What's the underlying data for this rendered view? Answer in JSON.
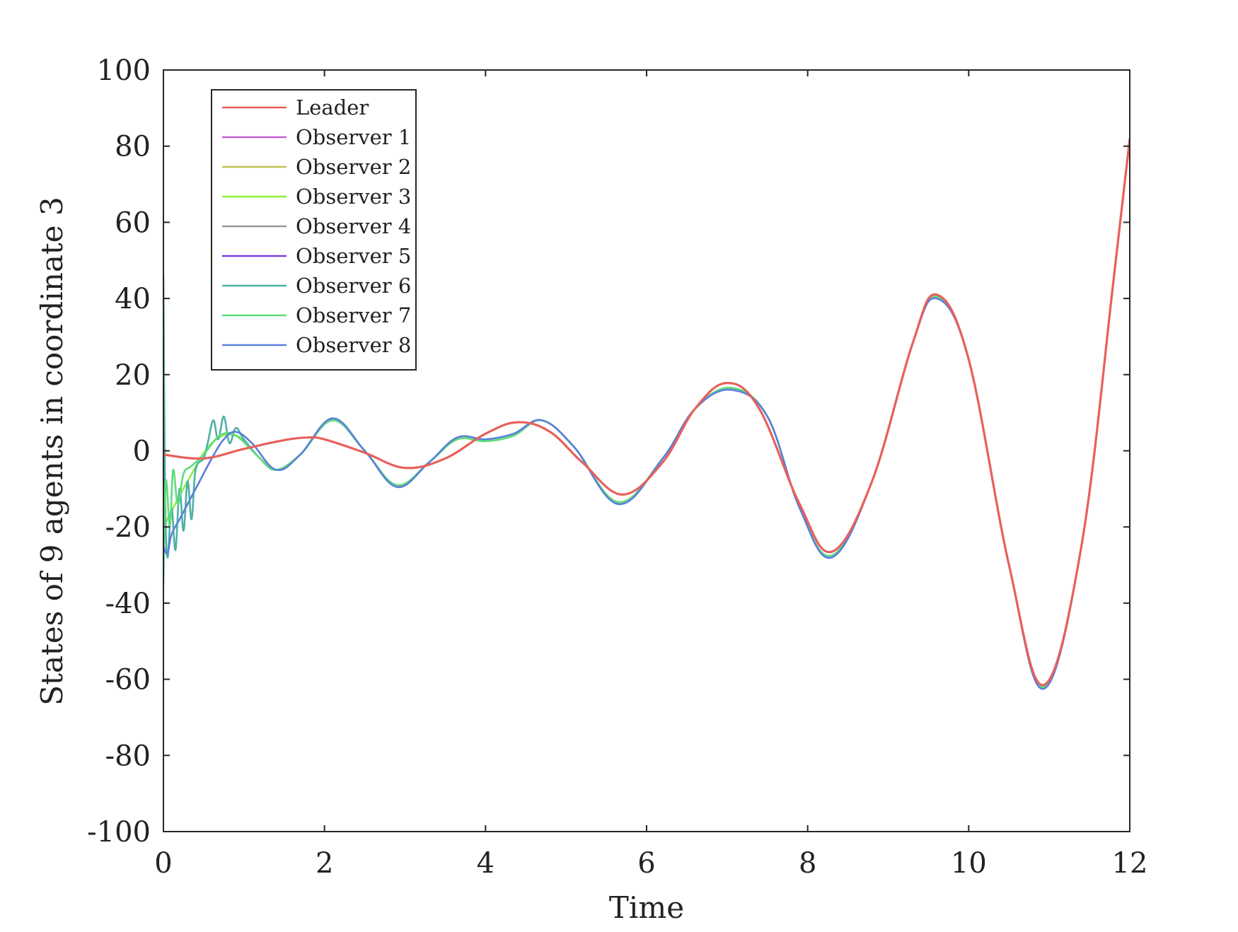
{
  "chart_data": {
    "type": "line",
    "title": "",
    "xlabel": "Time",
    "ylabel": "States of 9 agents in coordinate 3",
    "xlim": [
      0,
      12
    ],
    "ylim": [
      -100,
      100
    ],
    "xticks": [
      0,
      2,
      4,
      6,
      8,
      10,
      12
    ],
    "yticks": [
      -100,
      -80,
      -60,
      -40,
      -20,
      0,
      20,
      40,
      60,
      80,
      100
    ],
    "xtick_labels": [
      "0",
      "2",
      "4",
      "6",
      "8",
      "10",
      "12"
    ],
    "ytick_labels": [
      "-100",
      "-80",
      "-60",
      "-40",
      "-20",
      "0",
      "20",
      "40",
      "60",
      "80",
      "100"
    ],
    "grid": false,
    "legend_position": "top-left",
    "series": [
      {
        "name": "Leader",
        "color": "#e8605a",
        "points": [
          [
            0,
            -1
          ],
          [
            0.5,
            -2
          ],
          [
            1.0,
            0.5
          ],
          [
            1.5,
            2.8
          ],
          [
            1.8,
            3.5
          ],
          [
            2.0,
            3.0
          ],
          [
            2.5,
            -0.5
          ],
          [
            3.0,
            -4.5
          ],
          [
            3.5,
            -2
          ],
          [
            4.0,
            4.5
          ],
          [
            4.4,
            7.5
          ],
          [
            4.8,
            5
          ],
          [
            5.2,
            -3
          ],
          [
            5.7,
            -11.5
          ],
          [
            6.2,
            -3
          ],
          [
            6.6,
            11
          ],
          [
            7.0,
            17.8
          ],
          [
            7.4,
            11
          ],
          [
            7.9,
            -14
          ],
          [
            8.3,
            -26.5
          ],
          [
            8.8,
            -8
          ],
          [
            9.3,
            28
          ],
          [
            9.6,
            41
          ],
          [
            10.0,
            24
          ],
          [
            10.5,
            -30
          ],
          [
            10.93,
            -61.5
          ],
          [
            11.4,
            -25
          ],
          [
            11.8,
            45
          ],
          [
            12.0,
            82
          ]
        ]
      },
      {
        "name": "Observer 1",
        "color": "#c85fd8",
        "points": []
      },
      {
        "name": "Observer 2",
        "color": "#bfc24e",
        "points": []
      },
      {
        "name": "Observer 3",
        "color": "#8cf040",
        "points": [
          [
            0,
            -20
          ],
          [
            0.3,
            -8
          ],
          [
            0.6,
            2
          ],
          [
            0.9,
            4
          ],
          [
            1.2,
            -2
          ],
          [
            1.4,
            -5
          ],
          [
            1.7,
            -1
          ],
          [
            2.1,
            8
          ],
          [
            2.5,
            0
          ],
          [
            2.9,
            -9
          ],
          [
            3.3,
            -3
          ],
          [
            3.65,
            3
          ],
          [
            4.0,
            2.5
          ],
          [
            4.35,
            4
          ],
          [
            4.7,
            8
          ],
          [
            5.1,
            1
          ],
          [
            5.65,
            -13.5
          ],
          [
            6.2,
            -2
          ],
          [
            6.6,
            11
          ],
          [
            7.05,
            16.5
          ],
          [
            7.5,
            9
          ],
          [
            7.9,
            -15
          ],
          [
            8.3,
            -27.5
          ],
          [
            8.8,
            -8
          ],
          [
            9.3,
            28
          ],
          [
            9.6,
            40.5
          ],
          [
            10.0,
            24
          ],
          [
            10.5,
            -30
          ],
          [
            10.93,
            -62
          ],
          [
            11.4,
            -25
          ],
          [
            11.8,
            45
          ],
          [
            12.0,
            82
          ]
        ]
      },
      {
        "name": "Observer 4",
        "color": "#999999",
        "points": []
      },
      {
        "name": "Observer 5",
        "color": "#7b3fe0",
        "points": []
      },
      {
        "name": "Observer 6",
        "color": "#4fafa8",
        "points": [
          [
            0,
            46
          ],
          [
            0.02,
            -10
          ],
          [
            0.05,
            -28
          ],
          [
            0.1,
            -15
          ],
          [
            0.15,
            -26
          ],
          [
            0.2,
            -10
          ],
          [
            0.25,
            -21
          ],
          [
            0.3,
            -8
          ],
          [
            0.35,
            -18
          ],
          [
            0.4,
            -5
          ],
          [
            0.5,
            -2
          ],
          [
            0.55,
            2
          ],
          [
            0.62,
            8
          ],
          [
            0.68,
            3
          ],
          [
            0.75,
            9
          ],
          [
            0.82,
            2
          ],
          [
            0.9,
            6
          ],
          [
            1.0,
            3
          ],
          [
            1.2,
            -2
          ],
          [
            1.4,
            -5
          ],
          [
            1.7,
            -1
          ],
          [
            2.1,
            8.5
          ],
          [
            2.5,
            0
          ],
          [
            2.9,
            -9
          ],
          [
            3.3,
            -3
          ],
          [
            3.65,
            3.5
          ],
          [
            4.0,
            3
          ],
          [
            4.35,
            4.5
          ],
          [
            4.7,
            8
          ],
          [
            5.1,
            1
          ],
          [
            5.65,
            -13.5
          ],
          [
            6.2,
            -2
          ],
          [
            6.6,
            11
          ],
          [
            7.05,
            16.5
          ],
          [
            7.5,
            9
          ],
          [
            7.9,
            -15
          ],
          [
            8.3,
            -27.5
          ],
          [
            8.8,
            -8
          ],
          [
            9.3,
            28
          ],
          [
            9.6,
            40.5
          ],
          [
            10.0,
            24
          ],
          [
            10.5,
            -30
          ],
          [
            10.93,
            -62
          ],
          [
            11.4,
            -25
          ],
          [
            11.8,
            45
          ],
          [
            12.0,
            82
          ]
        ]
      },
      {
        "name": "Observer 7",
        "color": "#5fdc7a",
        "points": [
          [
            0,
            -35
          ],
          [
            0.03,
            -8
          ],
          [
            0.08,
            -20
          ],
          [
            0.12,
            -5
          ],
          [
            0.18,
            -14
          ],
          [
            0.25,
            -6
          ],
          [
            0.35,
            -4
          ],
          [
            0.5,
            -1
          ],
          [
            0.7,
            4
          ],
          [
            0.9,
            4
          ],
          [
            1.2,
            -2
          ],
          [
            1.4,
            -5
          ],
          [
            1.7,
            -1
          ],
          [
            2.1,
            8
          ],
          [
            2.5,
            0
          ],
          [
            2.9,
            -9
          ],
          [
            3.3,
            -3
          ],
          [
            3.65,
            3
          ],
          [
            4.0,
            2.5
          ],
          [
            4.35,
            4
          ],
          [
            4.7,
            8
          ],
          [
            5.1,
            1
          ],
          [
            5.65,
            -13.5
          ],
          [
            6.2,
            -2
          ],
          [
            6.6,
            11
          ],
          [
            7.05,
            16.5
          ],
          [
            7.5,
            9
          ],
          [
            7.9,
            -15
          ],
          [
            8.3,
            -27.5
          ],
          [
            8.8,
            -8
          ],
          [
            9.3,
            28
          ],
          [
            9.6,
            40.5
          ],
          [
            10.0,
            24
          ],
          [
            10.5,
            -30
          ],
          [
            10.93,
            -62
          ],
          [
            11.4,
            -25
          ],
          [
            11.8,
            45
          ],
          [
            12.0,
            82
          ]
        ]
      },
      {
        "name": "Observer 8",
        "color": "#5b7fdc",
        "points": [
          [
            0,
            -25
          ],
          [
            0.05,
            -27
          ],
          [
            0.1,
            -22
          ],
          [
            0.2,
            -18
          ],
          [
            0.3,
            -14
          ],
          [
            0.45,
            -8
          ],
          [
            0.6,
            -2
          ],
          [
            0.75,
            3
          ],
          [
            0.9,
            5
          ],
          [
            1.1,
            2
          ],
          [
            1.4,
            -5
          ],
          [
            1.7,
            -1
          ],
          [
            2.1,
            8.5
          ],
          [
            2.5,
            0
          ],
          [
            2.9,
            -9.5
          ],
          [
            3.3,
            -3
          ],
          [
            3.65,
            3.5
          ],
          [
            4.0,
            3
          ],
          [
            4.35,
            4.5
          ],
          [
            4.7,
            8
          ],
          [
            5.1,
            1
          ],
          [
            5.65,
            -14
          ],
          [
            6.2,
            -2
          ],
          [
            6.6,
            11
          ],
          [
            7.05,
            16
          ],
          [
            7.5,
            9
          ],
          [
            7.9,
            -15
          ],
          [
            8.3,
            -28
          ],
          [
            8.8,
            -8
          ],
          [
            9.3,
            28
          ],
          [
            9.6,
            40
          ],
          [
            10.0,
            24
          ],
          [
            10.5,
            -30
          ],
          [
            10.93,
            -62.5
          ],
          [
            11.4,
            -25
          ],
          [
            11.8,
            45
          ],
          [
            12.0,
            82
          ]
        ]
      }
    ]
  }
}
